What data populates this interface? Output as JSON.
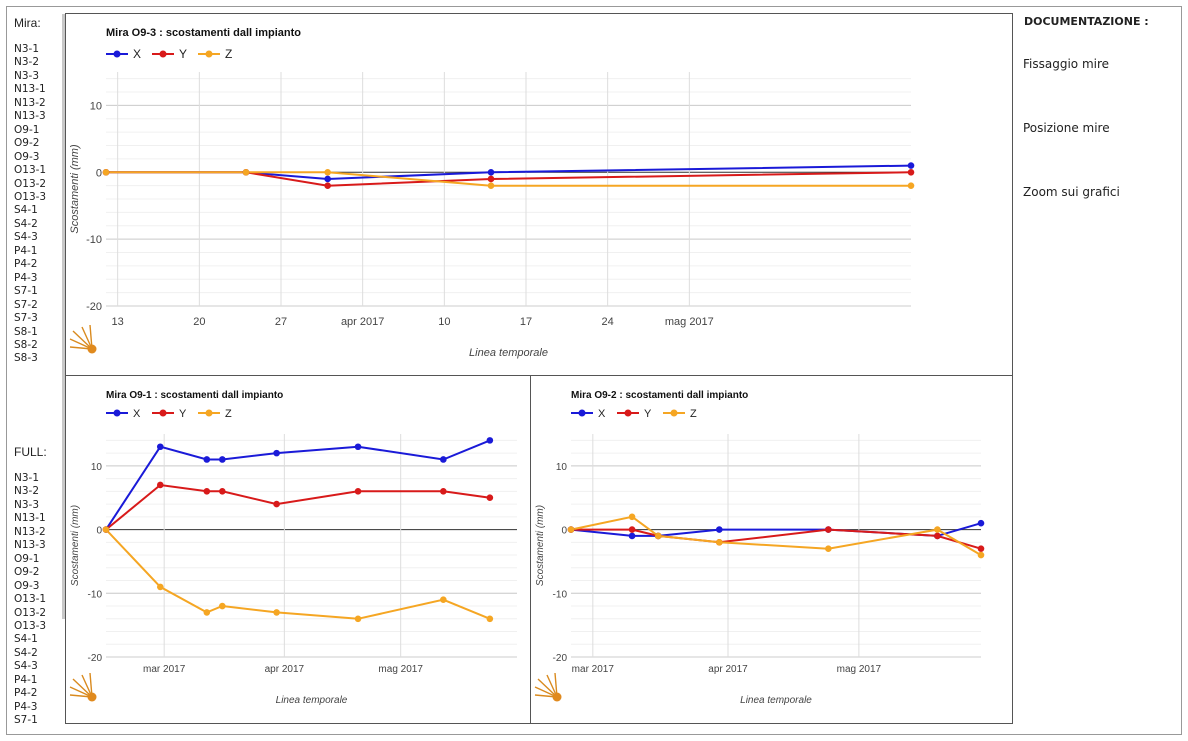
{
  "left": {
    "mira_title": "Mira:",
    "mira_items": [
      "N3-1",
      "N3-2",
      "N3-3",
      "N13-1",
      "N13-2",
      "N13-3",
      "O9-1",
      "O9-2",
      "O9-3",
      "O13-1",
      "O13-2",
      "O13-3",
      "S4-1",
      "S4-2",
      "S4-3",
      "P4-1",
      "P4-2",
      "P4-3",
      "S7-1",
      "S7-2",
      "S7-3",
      "S8-1",
      "S8-2",
      "S8-3"
    ],
    "full_title": "FULL:",
    "full_items": [
      "N3-1",
      "N3-2",
      "N3-3",
      "N13-1",
      "N13-2",
      "N13-3",
      "O9-1",
      "O9-2",
      "O9-3",
      "O13-1",
      "O13-2",
      "O13-3",
      "S4-1",
      "S4-2",
      "S4-3",
      "P4-1",
      "P4-2",
      "P4-3",
      "S7-1"
    ]
  },
  "right": {
    "doc_title": "DOCUMENTAZIONE :",
    "links": [
      "Fissaggio mire",
      "Posizione mire",
      "Zoom sui grafici"
    ]
  },
  "colors": {
    "X": "#1a1ad8",
    "Y": "#d81a1a",
    "Z": "#f5a623"
  },
  "chart_data": [
    {
      "type": "line",
      "title": "Mira O9-3 : scostamenti dall impianto",
      "xlabel": "Linea temporale",
      "ylabel": "Scostamenti (mm)",
      "ylim": [
        -20,
        15
      ],
      "xlim": [
        "2017-03-12",
        "2017-05-20"
      ],
      "yticks": [
        10,
        0,
        -10,
        -20
      ],
      "xticks": [
        {
          "date": "2017-03-13",
          "label": "13"
        },
        {
          "date": "2017-03-20",
          "label": "20"
        },
        {
          "date": "2017-03-27",
          "label": "27"
        },
        {
          "date": "2017-04-03",
          "label": "apr 2017"
        },
        {
          "date": "2017-04-10",
          "label": "10"
        },
        {
          "date": "2017-04-17",
          "label": "17"
        },
        {
          "date": "2017-04-24",
          "label": "24"
        },
        {
          "date": "2017-05-01",
          "label": "mag 2017"
        }
      ],
      "legend": "top-left",
      "series": [
        {
          "name": "X",
          "x": [
            "2017-03-12",
            "2017-03-24",
            "2017-03-31",
            "2017-04-14",
            "2017-05-20"
          ],
          "y": [
            0,
            0,
            -1,
            0,
            1
          ]
        },
        {
          "name": "Y",
          "x": [
            "2017-03-12",
            "2017-03-24",
            "2017-03-31",
            "2017-04-14",
            "2017-05-20"
          ],
          "y": [
            0,
            0,
            -2,
            -1,
            0
          ]
        },
        {
          "name": "Z",
          "x": [
            "2017-03-12",
            "2017-03-24",
            "2017-03-31",
            "2017-04-14",
            "2017-05-20"
          ],
          "y": [
            0,
            0,
            0,
            -2,
            -2
          ]
        }
      ]
    },
    {
      "type": "line",
      "title": "Mira O9-1 : scostamenti dall impianto",
      "xlabel": "Linea temporale",
      "ylabel": "Scostamenti (mm)",
      "ylim": [
        -20,
        15
      ],
      "xlim": [
        "2017-02-14",
        "2017-05-31"
      ],
      "yticks": [
        10,
        0,
        -10,
        -20
      ],
      "xticks": [
        {
          "date": "2017-03-01",
          "label": "mar 2017"
        },
        {
          "date": "2017-04-01",
          "label": "apr 2017"
        },
        {
          "date": "2017-05-01",
          "label": "mag 2017"
        }
      ],
      "legend": "top-left",
      "series": [
        {
          "name": "X",
          "x": [
            "2017-02-14",
            "2017-02-28",
            "2017-03-12",
            "2017-03-16",
            "2017-03-30",
            "2017-04-20",
            "2017-05-12",
            "2017-05-24"
          ],
          "y": [
            0,
            13,
            11,
            11,
            12,
            13,
            11,
            14
          ]
        },
        {
          "name": "Y",
          "x": [
            "2017-02-14",
            "2017-02-28",
            "2017-03-12",
            "2017-03-16",
            "2017-03-30",
            "2017-04-20",
            "2017-05-12",
            "2017-05-24"
          ],
          "y": [
            0,
            7,
            6,
            6,
            4,
            6,
            6,
            5
          ]
        },
        {
          "name": "Z",
          "x": [
            "2017-02-14",
            "2017-02-28",
            "2017-03-12",
            "2017-03-16",
            "2017-03-30",
            "2017-04-20",
            "2017-05-12",
            "2017-05-24"
          ],
          "y": [
            0,
            -9,
            -13,
            -12,
            -13,
            -14,
            -11,
            -14
          ]
        }
      ]
    },
    {
      "type": "line",
      "title": "Mira O9-2 : scostamenti dall impianto",
      "xlabel": "Linea temporale",
      "ylabel": "Scostamenti (mm)",
      "ylim": [
        -20,
        15
      ],
      "xlim": [
        "2017-02-24",
        "2017-05-29"
      ],
      "yticks": [
        10,
        0,
        -10,
        -20
      ],
      "xticks": [
        {
          "date": "2017-03-01",
          "label": "mar 2017"
        },
        {
          "date": "2017-04-01",
          "label": "apr 2017"
        },
        {
          "date": "2017-05-01",
          "label": "mag 2017"
        }
      ],
      "legend": "top-left",
      "series": [
        {
          "name": "X",
          "x": [
            "2017-02-24",
            "2017-03-10",
            "2017-03-16",
            "2017-03-30",
            "2017-04-24",
            "2017-05-19",
            "2017-05-29"
          ],
          "y": [
            0,
            -1,
            -1,
            0,
            0,
            -1,
            1
          ]
        },
        {
          "name": "Y",
          "x": [
            "2017-02-24",
            "2017-03-10",
            "2017-03-16",
            "2017-03-30",
            "2017-04-24",
            "2017-05-19",
            "2017-05-29"
          ],
          "y": [
            0,
            0,
            -1,
            -2,
            0,
            -1,
            -3
          ]
        },
        {
          "name": "Z",
          "x": [
            "2017-02-24",
            "2017-03-10",
            "2017-03-16",
            "2017-03-30",
            "2017-04-24",
            "2017-05-19",
            "2017-05-29"
          ],
          "y": [
            0,
            2,
            -1,
            -2,
            -3,
            0,
            -4
          ]
        }
      ]
    }
  ]
}
